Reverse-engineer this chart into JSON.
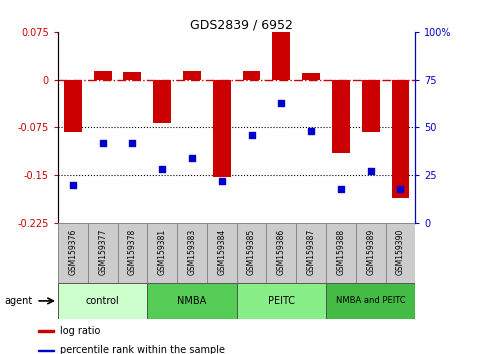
{
  "title": "GDS2839 / 6952",
  "samples": [
    "GSM159376",
    "GSM159377",
    "GSM159378",
    "GSM159381",
    "GSM159383",
    "GSM159384",
    "GSM159385",
    "GSM159386",
    "GSM159387",
    "GSM159388",
    "GSM159389",
    "GSM159390"
  ],
  "log_ratio": [
    -0.082,
    0.013,
    0.012,
    -0.068,
    0.013,
    -0.153,
    0.013,
    0.075,
    0.01,
    -0.115,
    -0.082,
    -0.185
  ],
  "percentile_rank": [
    20,
    42,
    42,
    28,
    34,
    22,
    46,
    63,
    48,
    18,
    27,
    18
  ],
  "groups": [
    {
      "label": "control",
      "start": 0,
      "end": 3,
      "color": "#ccffcc"
    },
    {
      "label": "NMBA",
      "start": 3,
      "end": 6,
      "color": "#55cc55"
    },
    {
      "label": "PEITC",
      "start": 6,
      "end": 9,
      "color": "#88ee88"
    },
    {
      "label": "NMBA and PEITC",
      "start": 9,
      "end": 12,
      "color": "#44bb44"
    }
  ],
  "ylim_left": [
    -0.225,
    0.075
  ],
  "ylim_right": [
    0,
    100
  ],
  "bar_color": "#cc0000",
  "dot_color": "#0000cc",
  "hline_zero_color": "#cc0000",
  "hline_dotted_color": "#000000",
  "hline_dotted_values": [
    -0.075,
    -0.15
  ],
  "right_ticks": [
    0,
    25,
    50,
    75,
    100
  ],
  "right_tick_labels": [
    "0",
    "25",
    "50",
    "75",
    "100%"
  ],
  "left_ticks": [
    -0.225,
    -0.15,
    -0.075,
    0,
    0.075
  ],
  "left_tick_labels": [
    "-0.225",
    "-0.15",
    "-0.075",
    "0",
    "0.075"
  ],
  "background_color": "#ffffff",
  "sample_box_color": "#cccccc",
  "legend_items": [
    {
      "color": "#cc0000",
      "label": "log ratio"
    },
    {
      "color": "#0000cc",
      "label": "percentile rank within the sample"
    }
  ],
  "bar_width": 0.6,
  "dot_size": 20
}
